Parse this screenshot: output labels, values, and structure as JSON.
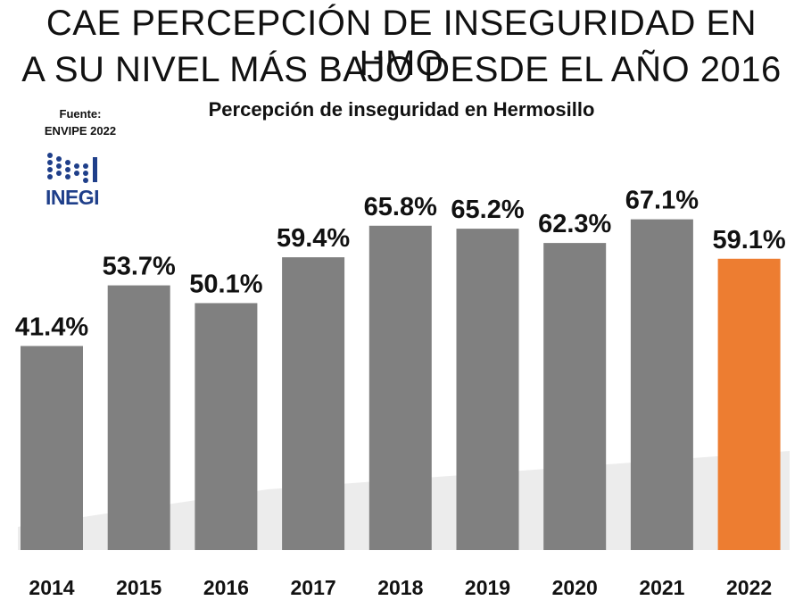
{
  "header": {
    "title_line1": "CAE PERCEPCIÓN DE INSEGURIDAD EN  HMO",
    "title_line2": "A SU NIVEL MÁS BAJO DESDE EL AÑO 2016",
    "source_line1": "Fuente:",
    "source_line2": "ENVIPE 2022",
    "logo_text": "INEGI"
  },
  "colors": {
    "bar_default": "#808080",
    "bar_highlight": "#ed7d31",
    "logo": "#1f3f8a"
  },
  "chart_data": {
    "type": "bar",
    "title": "Percepción de inseguridad en Hermosillo",
    "categories": [
      "2014",
      "2015",
      "2016",
      "2017",
      "2018",
      "2019",
      "2020",
      "2021",
      "2022"
    ],
    "values": [
      41.4,
      53.7,
      50.1,
      59.4,
      65.8,
      65.2,
      62.3,
      67.1,
      59.1
    ],
    "value_labels": [
      "41.4%",
      "53.7%",
      "50.1%",
      "59.4%",
      "65.8%",
      "65.2%",
      "62.3%",
      "67.1%",
      "59.1%"
    ],
    "highlight_category": "2022",
    "ylim": [
      0,
      100
    ],
    "grid": false,
    "legend": "none"
  }
}
